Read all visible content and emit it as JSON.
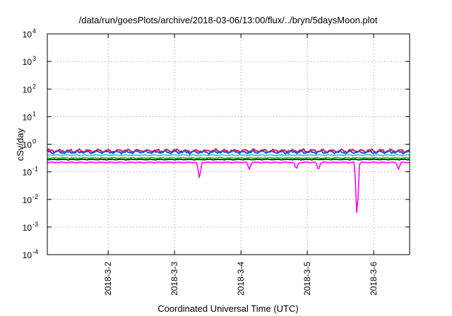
{
  "chart_data": {
    "type": "line",
    "title": "/data/run/goesPlots/archive/2018-03-06/13:00/flux/../bryn/5daysMoon.plot",
    "xlabel": "Coordinated Universal Time (UTC)",
    "ylabel": "cSv/day",
    "yscale": "log",
    "ylim": [
      0.0001,
      10000
    ],
    "xlim": [
      "2018-03-01 02:00",
      "2018-03-06 13:00"
    ],
    "x_ticks": [
      "2018-3-2",
      "2018-3-3",
      "2018-3-4",
      "2018-3-5",
      "2018-3-6"
    ],
    "y_ticks": [
      {
        "base": "10",
        "exp": "-4",
        "value": 0.0001
      },
      {
        "base": "10",
        "exp": "-3",
        "value": 0.001
      },
      {
        "base": "10",
        "exp": "-2",
        "value": 0.01
      },
      {
        "base": "10",
        "exp": "-1",
        "value": 0.1
      },
      {
        "base": "10",
        "exp": "0",
        "value": 1
      },
      {
        "base": "10",
        "exp": "1",
        "value": 10
      },
      {
        "base": "10",
        "exp": "2",
        "value": 100
      },
      {
        "base": "10",
        "exp": "3",
        "value": 1000
      },
      {
        "base": "10",
        "exp": "4",
        "value": 10000
      }
    ],
    "grid": true,
    "series": [
      {
        "color": "#e8103a",
        "level": 0.58,
        "amp": 0.18,
        "drops": []
      },
      {
        "color": "#1e4cf0",
        "level": 0.52,
        "amp": 0.16,
        "drops": []
      },
      {
        "color": "#00d0d0",
        "level": 0.4,
        "amp": 0.06,
        "drops": []
      },
      {
        "color": "#00c000",
        "level": 0.32,
        "amp": 0.05,
        "drops": []
      },
      {
        "color": "#000000",
        "level": 0.28,
        "amp": 0.04,
        "drops": []
      },
      {
        "color": "#ff00ff",
        "level": 0.22,
        "amp": 0.05,
        "drops": [
          {
            "x": "2018-03-03 09:00",
            "value": 0.055
          },
          {
            "x": "2018-03-04 03:00",
            "value": 0.12
          },
          {
            "x": "2018-03-04 20:00",
            "value": 0.12
          },
          {
            "x": "2018-03-05 04:00",
            "value": 0.11
          },
          {
            "x": "2018-03-05 18:00",
            "value": 0.0015
          },
          {
            "x": "2018-03-06 09:00",
            "value": 0.12
          }
        ]
      }
    ]
  }
}
